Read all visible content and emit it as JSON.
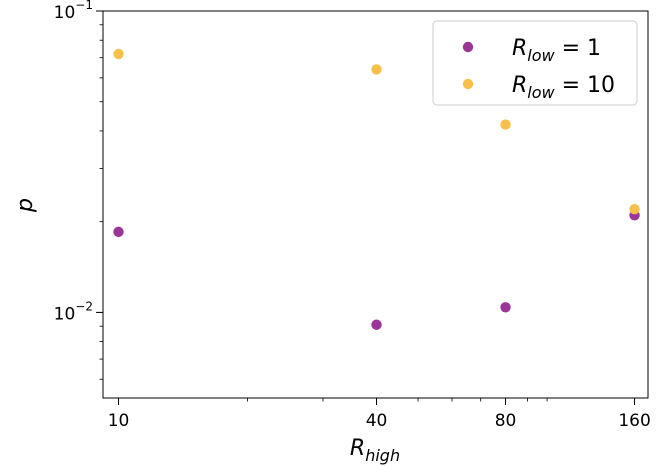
{
  "chart_data": {
    "type": "scatter",
    "xlabel": {
      "base": "R",
      "sub": "high"
    },
    "ylabel": "p",
    "xscale": "log",
    "yscale": "log",
    "xlim": [
      9.2,
      172
    ],
    "ylim": [
      0.0052,
      0.1
    ],
    "xticks": [
      {
        "value": 10,
        "label": "10"
      },
      {
        "value": 40,
        "label": "40"
      },
      {
        "value": 80,
        "label": "80"
      },
      {
        "value": 160,
        "label": "160"
      }
    ],
    "yticks": [
      {
        "value": 0.1,
        "base": "10",
        "exp": "−1"
      },
      {
        "value": 0.01,
        "base": "10",
        "exp": "−2"
      }
    ],
    "legend": {
      "position": "top-right"
    },
    "series": [
      {
        "name": "R_low = 1",
        "label_base": "R",
        "label_sub": "low",
        "label_rest": " = 1",
        "color": "#9b3597",
        "x": [
          10,
          40,
          80,
          160
        ],
        "y": [
          0.0185,
          0.0091,
          0.0104,
          0.021
        ]
      },
      {
        "name": "R_low = 10",
        "label_base": "R",
        "label_sub": "low",
        "label_rest": " = 10",
        "color": "#f7c04d",
        "x": [
          10,
          40,
          80,
          160
        ],
        "y": [
          0.072,
          0.064,
          0.042,
          0.022
        ]
      }
    ]
  }
}
